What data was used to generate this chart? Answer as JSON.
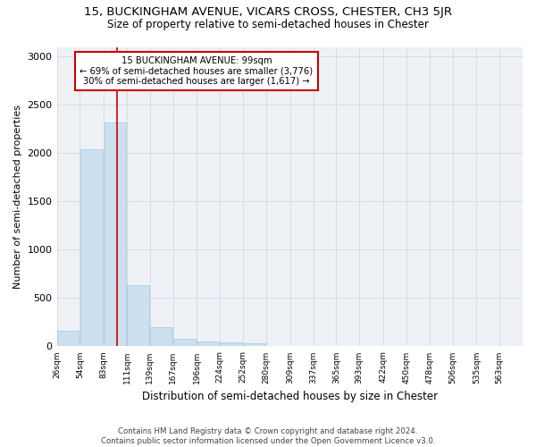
{
  "title": "15, BUCKINGHAM AVENUE, VICARS CROSS, CHESTER, CH3 5JR",
  "subtitle": "Size of property relative to semi-detached houses in Chester",
  "xlabel": "Distribution of semi-detached houses by size in Chester",
  "ylabel": "Number of semi-detached properties",
  "footer_line1": "Contains HM Land Registry data © Crown copyright and database right 2024.",
  "footer_line2": "Contains public sector information licensed under the Open Government Licence v3.0.",
  "property_size": 99,
  "annotation_line1": "15 BUCKINGHAM AVENUE: 99sqm",
  "annotation_line2": "← 69% of semi-detached houses are smaller (3,776)",
  "annotation_line3": "30% of semi-detached houses are larger (1,617) →",
  "bar_color": "#cce0f0",
  "bar_edge_color": "#aacce0",
  "vline_color": "#cc0000",
  "annotation_box_edge": "#cc0000",
  "grid_color": "#d0d8e0",
  "background_color": "#eef2f7",
  "bins": [
    26,
    54,
    83,
    111,
    139,
    167,
    196,
    224,
    252,
    280,
    309,
    337,
    365,
    393,
    422,
    450,
    478,
    506,
    535,
    563,
    591
  ],
  "counts": [
    160,
    2040,
    2320,
    630,
    200,
    80,
    50,
    40,
    30,
    0,
    0,
    0,
    0,
    0,
    0,
    0,
    0,
    0,
    0,
    0
  ],
  "ylim": [
    0,
    3100
  ],
  "yticks": [
    0,
    500,
    1000,
    1500,
    2000,
    2500,
    3000
  ],
  "figsize": [
    6.0,
    5.0
  ],
  "dpi": 100
}
